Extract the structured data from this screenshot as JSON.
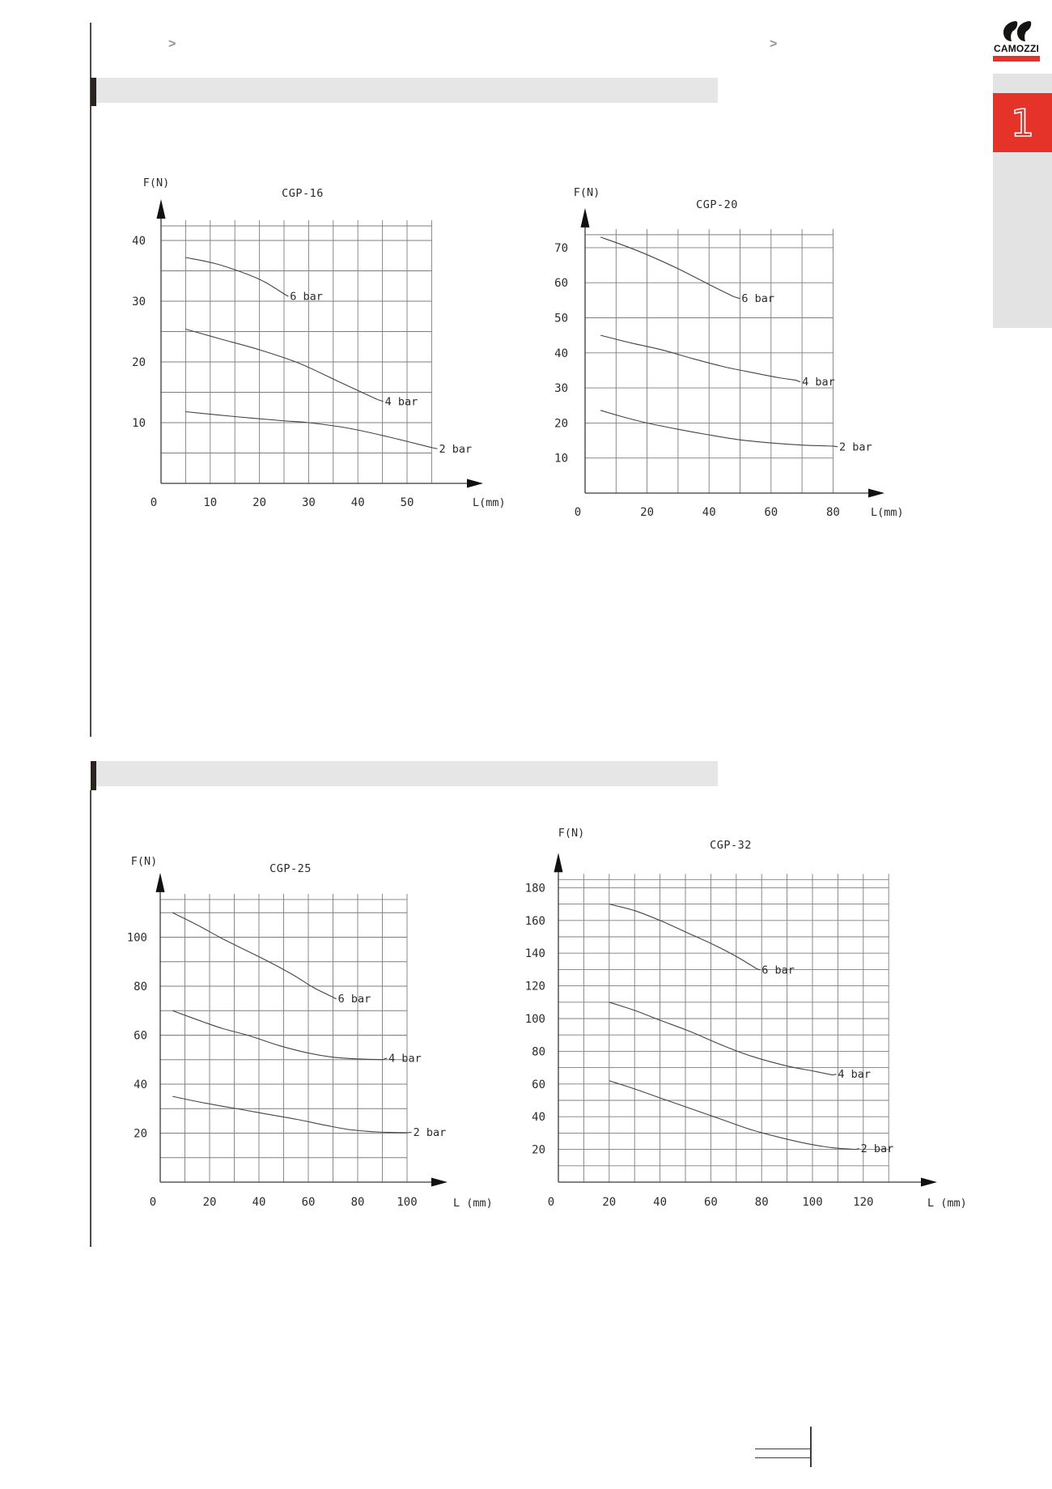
{
  "page": {
    "chevron_left": ">",
    "chevron_right": ">",
    "logo": {
      "text": "CAMOZZI",
      "accent_color": "#e5332a"
    },
    "sidebar_tab": {
      "number": "1",
      "color": "#e5332a"
    }
  },
  "chart_data": [
    {
      "type": "line",
      "title": "CGP-16",
      "xlabel": "L(mm)",
      "ylabel": "F(N)",
      "xlim": [
        0,
        55
      ],
      "ylim": [
        0,
        42.4
      ],
      "x_ticks": [
        0,
        10,
        20,
        30,
        40,
        50
      ],
      "y_ticks": [
        10,
        20,
        30,
        40
      ],
      "x_grid_step": 5,
      "y_grid_step": 5,
      "grid": true,
      "legend": "inline",
      "series": [
        {
          "name": "6 bar",
          "pressure_bar": 6,
          "label_at": [
            26.2,
            30.8
          ],
          "points": [
            [
              5,
              37.2
            ],
            [
              11,
              36.2
            ],
            [
              17,
              34.6
            ],
            [
              21,
              33.2
            ],
            [
              25,
              31.2
            ]
          ]
        },
        {
          "name": "4 bar",
          "pressure_bar": 4,
          "label_at": [
            45.5,
            13.5
          ],
          "points": [
            [
              5,
              25.4
            ],
            [
              12,
              23.8
            ],
            [
              20,
              22.0
            ],
            [
              28,
              19.8
            ],
            [
              36,
              16.8
            ],
            [
              44,
              13.8
            ]
          ]
        },
        {
          "name": "2 bar",
          "pressure_bar": 2,
          "label_at": [
            56.5,
            5.7
          ],
          "points": [
            [
              5,
              11.8
            ],
            [
              15,
              11.0
            ],
            [
              25,
              10.3
            ],
            [
              30,
              10.0
            ],
            [
              38,
              9.1
            ],
            [
              46,
              7.7
            ],
            [
              55,
              5.9
            ]
          ]
        }
      ]
    },
    {
      "type": "line",
      "title": "CGP-20",
      "xlabel": "L(mm)",
      "ylabel": "F(N)",
      "xlim": [
        0,
        80
      ],
      "ylim": [
        0,
        73.7
      ],
      "x_ticks": [
        0,
        20,
        40,
        60,
        80
      ],
      "y_ticks": [
        10,
        20,
        30,
        40,
        50,
        60,
        70
      ],
      "x_grid_step": 10,
      "y_grid_step": 10,
      "grid": true,
      "legend": "inline",
      "series": [
        {
          "name": "6 bar",
          "pressure_bar": 6,
          "label_at": [
            50.5,
            55.5
          ],
          "points": [
            [
              5,
              73.0
            ],
            [
              12,
              70.8
            ],
            [
              20,
              68.0
            ],
            [
              30,
              64.0
            ],
            [
              40,
              59.5
            ],
            [
              48,
              56.0
            ]
          ]
        },
        {
          "name": "4 bar",
          "pressure_bar": 4,
          "label_at": [
            70.0,
            31.7
          ],
          "points": [
            [
              5,
              45.0
            ],
            [
              15,
              42.8
            ],
            [
              25,
              40.8
            ],
            [
              35,
              38.3
            ],
            [
              45,
              36.0
            ],
            [
              55,
              34.2
            ],
            [
              62,
              33.0
            ],
            [
              68,
              32.2
            ]
          ]
        },
        {
          "name": "2 bar",
          "pressure_bar": 2,
          "label_at": [
            82.0,
            13.2
          ],
          "points": [
            [
              5,
              23.6
            ],
            [
              12,
              21.8
            ],
            [
              20,
              20.0
            ],
            [
              30,
              18.2
            ],
            [
              40,
              16.6
            ],
            [
              50,
              15.2
            ],
            [
              60,
              14.3
            ],
            [
              70,
              13.7
            ],
            [
              80,
              13.4
            ]
          ]
        }
      ]
    },
    {
      "type": "line",
      "title": "CGP-25",
      "xlabel": "L (mm)",
      "ylabel": "F(N)",
      "xlim": [
        0,
        100
      ],
      "ylim": [
        0,
        115.4
      ],
      "x_ticks": [
        0,
        20,
        40,
        60,
        80,
        100
      ],
      "y_ticks": [
        20,
        40,
        60,
        80,
        100
      ],
      "x_grid_step": 10,
      "y_grid_step": 10,
      "grid": true,
      "legend": "inline",
      "series": [
        {
          "name": "6 bar",
          "pressure_bar": 6,
          "label_at": [
            72.0,
            74.8
          ],
          "points": [
            [
              5,
              110.0
            ],
            [
              15,
              105.0
            ],
            [
              25,
              99.5
            ],
            [
              35,
              94.5
            ],
            [
              44,
              90.0
            ],
            [
              54,
              84.5
            ],
            [
              62,
              79.5
            ],
            [
              70,
              75.5
            ]
          ]
        },
        {
          "name": "4 bar",
          "pressure_bar": 4,
          "label_at": [
            92.5,
            50.6
          ],
          "points": [
            [
              5,
              70.0
            ],
            [
              15,
              66.3
            ],
            [
              25,
              62.8
            ],
            [
              36,
              59.8
            ],
            [
              48,
              55.8
            ],
            [
              60,
              52.7
            ],
            [
              70,
              51.0
            ],
            [
              80,
              50.3
            ],
            [
              90,
              50.0
            ]
          ]
        },
        {
          "name": "2 bar",
          "pressure_bar": 2,
          "label_at": [
            102.5,
            20.3
          ],
          "points": [
            [
              5,
              35.0
            ],
            [
              15,
              32.9
            ],
            [
              25,
              31.0
            ],
            [
              31,
              30.0
            ],
            [
              42,
              28.0
            ],
            [
              55,
              25.7
            ],
            [
              67,
              23.2
            ],
            [
              77,
              21.4
            ],
            [
              88,
              20.5
            ],
            [
              100,
              20.2
            ]
          ]
        }
      ]
    },
    {
      "type": "line",
      "title": "CGP-32",
      "xlabel": "L (mm)",
      "ylabel": "F(N)",
      "xlim": [
        0,
        130
      ],
      "ylim": [
        0,
        185
      ],
      "x_ticks": [
        0,
        20,
        40,
        60,
        80,
        100,
        120
      ],
      "y_ticks": [
        20,
        40,
        60,
        80,
        100,
        120,
        140,
        160,
        180
      ],
      "x_grid_step": 10,
      "y_grid_step": 10,
      "grid": true,
      "legend": "inline",
      "series": [
        {
          "name": "6 bar",
          "pressure_bar": 6,
          "label_at": [
            80.0,
            129.7
          ],
          "points": [
            [
              20,
              170.0
            ],
            [
              30,
              166.0
            ],
            [
              40,
              160.0
            ],
            [
              50,
              153.0
            ],
            [
              60,
              146.0
            ],
            [
              70,
              138.0
            ],
            [
              78,
              130.5
            ]
          ]
        },
        {
          "name": "4 bar",
          "pressure_bar": 4,
          "label_at": [
            110.0,
            66.0
          ],
          "points": [
            [
              20,
              110.0
            ],
            [
              30,
              105.0
            ],
            [
              40,
              99.0
            ],
            [
              52,
              92.0
            ],
            [
              64,
              84.0
            ],
            [
              76,
              77.0
            ],
            [
              90,
              71.0
            ],
            [
              100,
              68.0
            ],
            [
              108,
              65.5
            ]
          ]
        },
        {
          "name": "2 bar",
          "pressure_bar": 2,
          "label_at": [
            119.0,
            20.5
          ],
          "points": [
            [
              20,
              62.0
            ],
            [
              30,
              57.0
            ],
            [
              40,
              51.5
            ],
            [
              52,
              45.0
            ],
            [
              64,
              38.5
            ],
            [
              76,
              32.0
            ],
            [
              88,
              27.0
            ],
            [
              98,
              23.5
            ],
            [
              108,
              21.0
            ],
            [
              117,
              20.0
            ]
          ]
        }
      ]
    }
  ]
}
